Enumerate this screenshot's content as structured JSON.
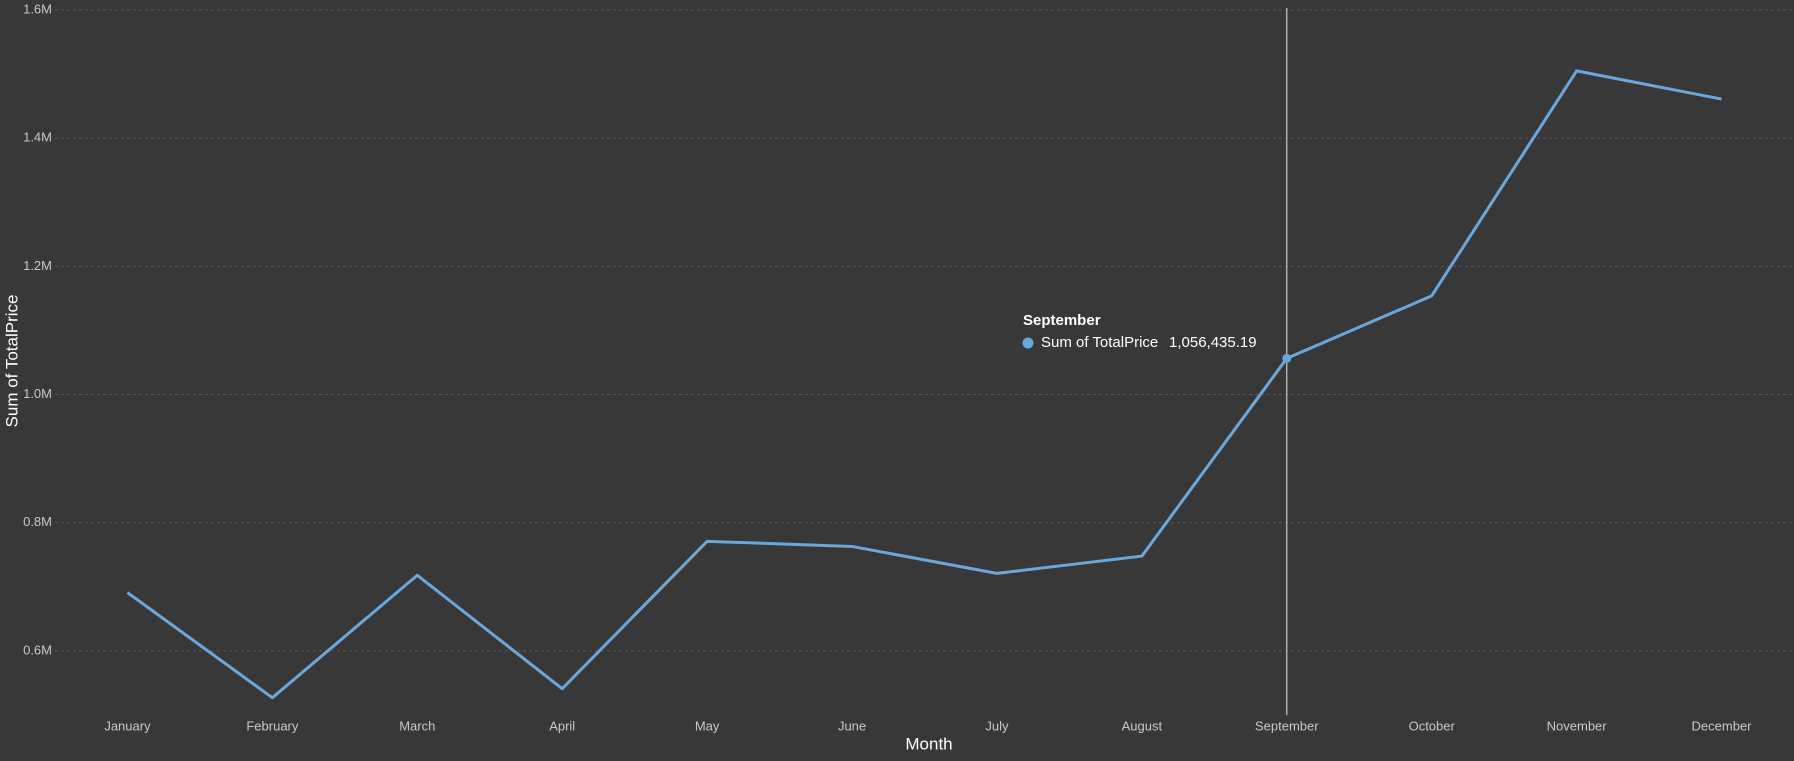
{
  "chart_data": {
    "type": "line",
    "x_label": "Month",
    "y_label": "Sum of TotalPrice",
    "categories": [
      "January",
      "February",
      "March",
      "April",
      "May",
      "June",
      "July",
      "August",
      "September",
      "October",
      "November",
      "December"
    ],
    "series": [
      {
        "name": "Sum of TotalPrice",
        "color": "#6aa8dc",
        "values": [
          691000,
          527000,
          718000,
          541000,
          771000,
          763000,
          721000,
          748000,
          1056435.19,
          1154000,
          1505000,
          1461000
        ]
      }
    ],
    "ylim": [
      500000,
      1600000
    ],
    "yticks": [
      {
        "value": 600000,
        "label": "0.6M"
      },
      {
        "value": 800000,
        "label": "0.8M"
      },
      {
        "value": 1000000,
        "label": "1.0M"
      },
      {
        "value": 1200000,
        "label": "1.2M"
      },
      {
        "value": 1400000,
        "label": "1.4M"
      },
      {
        "value": 1600000,
        "label": "1.6M"
      }
    ],
    "grid": true,
    "tooltip": {
      "category": "September",
      "value_label": "1,056,435.19"
    }
  }
}
